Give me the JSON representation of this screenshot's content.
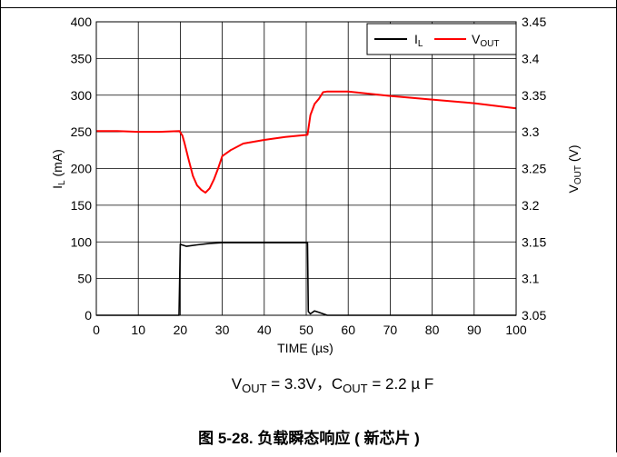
{
  "chart_data": {
    "type": "line",
    "xlabel": "TIME (µs)",
    "ylabel_left": "IL (mA)",
    "ylabel_right": "VOUT (V)",
    "x_ticks": [
      "0",
      "10",
      "20",
      "30",
      "40",
      "50",
      "60",
      "70",
      "80",
      "90",
      "100"
    ],
    "y_left_ticks": [
      "0",
      "50",
      "100",
      "150",
      "200",
      "250",
      "300",
      "350",
      "400"
    ],
    "y_right_ticks": [
      "3.05",
      "3.1",
      "3.15",
      "3.2",
      "3.25",
      "3.3",
      "3.35",
      "3.4",
      "3.45"
    ],
    "xlim": [
      0,
      100
    ],
    "ylim_left": [
      0,
      400
    ],
    "ylim_right": [
      3.05,
      3.45
    ],
    "grid": true,
    "legend_position": "top-right",
    "series": [
      {
        "name": "IL",
        "axis": "left",
        "color": "#000000",
        "x": [
          0,
          19.7,
          20.0,
          20.4,
          21.5,
          24,
          27,
          30,
          40,
          50.3,
          50.5,
          51,
          52,
          53,
          55,
          100
        ],
        "y": [
          0,
          0,
          97,
          96,
          94,
          96,
          98,
          99,
          99,
          99,
          5,
          2,
          6,
          4,
          0,
          0
        ]
      },
      {
        "name": "VOUT",
        "axis": "right",
        "color": "#ff0000",
        "x": [
          0,
          5,
          10,
          15,
          19.8,
          20.5,
          21,
          22,
          23,
          24,
          25,
          26,
          27,
          28,
          29,
          30,
          32,
          35,
          40,
          45,
          50.3,
          51,
          52,
          53,
          54,
          55,
          60,
          70,
          80,
          90,
          100
        ],
        "y": [
          3.301,
          3.301,
          3.3,
          3.3,
          3.301,
          3.295,
          3.285,
          3.262,
          3.24,
          3.227,
          3.221,
          3.217,
          3.223,
          3.235,
          3.25,
          3.267,
          3.275,
          3.284,
          3.289,
          3.293,
          3.296,
          3.323,
          3.338,
          3.345,
          3.354,
          3.355,
          3.355,
          3.349,
          3.344,
          3.339,
          3.332
        ]
      }
    ],
    "legend": [
      {
        "label_main": "I",
        "label_sub": "L",
        "color": "#000000"
      },
      {
        "label_main": "V",
        "label_sub": "OUT",
        "color": "#ff0000"
      }
    ]
  },
  "caption": {
    "condition_v_main": "V",
    "condition_v_sub": "OUT",
    "condition_v_rest": " = 3.3V，C",
    "condition_c_sub": "OUT",
    "condition_c_rest": " = 2.2 µ F",
    "figure_title": "图 5-28. 负载瞬态响应 ( 新芯片 )"
  }
}
